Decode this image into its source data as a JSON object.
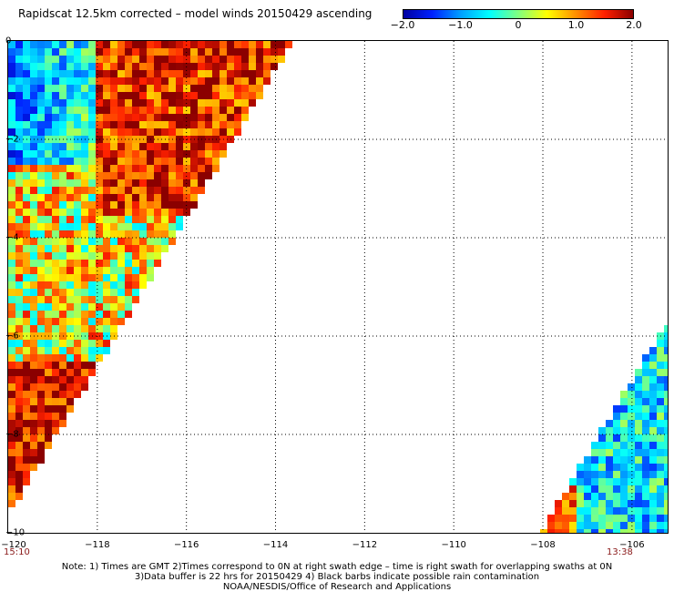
{
  "title": "Rapidscat 12.5km corrected – model winds 20150429 ascending",
  "colorbar": {
    "min": -2.0,
    "max": 2.0,
    "tick_labels": [
      "−2.0",
      "−1.0",
      "0",
      "1.0",
      "2.0"
    ],
    "tick_values": [
      -2.0,
      -1.0,
      0,
      1.0,
      2.0
    ],
    "colors": [
      "#0000a0",
      "#0020ff",
      "#00a0ff",
      "#00ffff",
      "#80ff80",
      "#ffff00",
      "#ff9000",
      "#ff2000",
      "#8b0000"
    ]
  },
  "axes": {
    "x_range": [
      -120,
      -105.2
    ],
    "y_range": [
      -10,
      0
    ],
    "x_ticks": [
      {
        "value": -120,
        "label": "−120"
      },
      {
        "value": -118,
        "label": "−118"
      },
      {
        "value": -116,
        "label": "−116"
      },
      {
        "value": -114,
        "label": "−114"
      },
      {
        "value": -112,
        "label": "−112"
      },
      {
        "value": -110,
        "label": "−110"
      },
      {
        "value": -108,
        "label": "−108"
      },
      {
        "value": -106,
        "label": "−106"
      }
    ],
    "y_ticks": [
      {
        "value": 0,
        "label": "0"
      },
      {
        "value": -2,
        "label": "−2"
      },
      {
        "value": -4,
        "label": "−4"
      },
      {
        "value": -6,
        "label": "−6"
      },
      {
        "value": -8,
        "label": "−8"
      },
      {
        "value": -10,
        "label": "−10"
      }
    ],
    "grid": "dotted"
  },
  "swaths": [
    {
      "time_label": "15:10",
      "side": "left"
    },
    {
      "time_label": "13:38",
      "side": "right"
    }
  ],
  "notes": [
    "Note: 1) Times are GMT 2)Times correspond to 0N at right swath edge – time is right swath for overlapping swaths at 0N",
    "3)Data buffer is 22 hrs for 20150429 4) Black barbs indicate possible rain contamination",
    "NOAA/NESDIS/Office of Research and Applications"
  ]
}
